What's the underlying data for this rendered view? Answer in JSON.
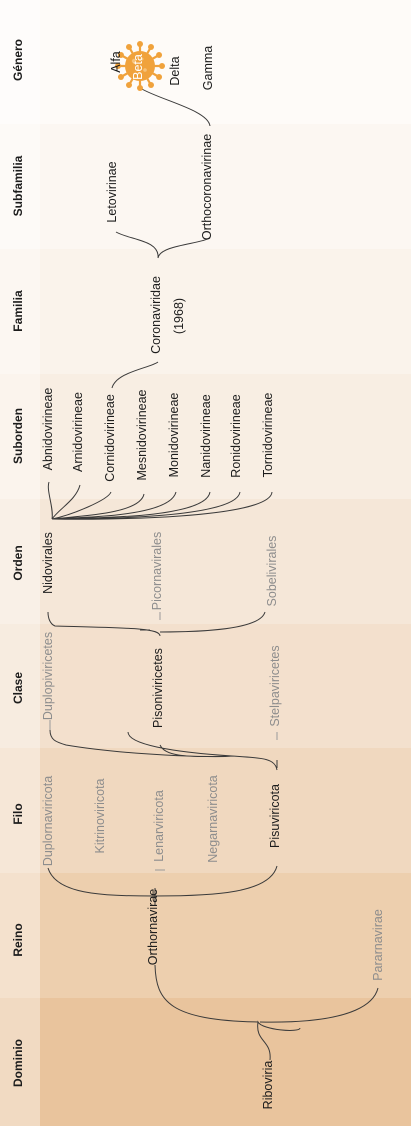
{
  "colors": {
    "band_1": "#e9c49d",
    "band_2": "#edcfae",
    "band_3": "#f0d8bf",
    "band_4": "#f3e0cd",
    "band_5": "#f5e7d8",
    "band_6": "#f8eee3",
    "band_7": "#faf3eb",
    "band_8": "#fcf7f2",
    "band_9": "#fefbf8",
    "virus": "#f0a23c",
    "text": "#1c1c1c",
    "muted_text": "#8d8d8d"
  },
  "ranks": [
    "Dominio",
    "Reino",
    "Filo",
    "Clase",
    "Orden",
    "Suborden",
    "Familia",
    "Subfamilia",
    "Género"
  ],
  "dominio": {
    "name": "Riboviria"
  },
  "reino": {
    "main": "Orthornavirae",
    "other": "Pararnavirae"
  },
  "filo": {
    "main": "Pisuviricota",
    "others": [
      "Duplornaviricota",
      "Kitrinoviricota",
      "Lenarviricota",
      "Negarnaviricota"
    ]
  },
  "clase": {
    "main": "Pisoniviricetes",
    "others": [
      "Duplopiviricetes",
      "Stelpaviricetes"
    ]
  },
  "orden": {
    "main": "Nidovirales",
    "others": [
      "Picornavirales",
      "Sobelivirales"
    ]
  },
  "suborden": [
    "Abnidovirineae",
    "Arnidovirineae",
    "Cornidovirineae",
    "Mesnidovirineae",
    "Monidovirineae",
    "Nanidovirineae",
    "Ronidovirineae",
    "Tornidovirineae"
  ],
  "familia": {
    "name": "Coronaviridae",
    "year": "(1968)"
  },
  "subfamilia": [
    "Letovirinae",
    "Orthocoronavirinae"
  ],
  "genero": [
    "Alfa",
    "Beta",
    "Delta",
    "Gamma"
  ],
  "virus_icon": "coronavirus-icon"
}
